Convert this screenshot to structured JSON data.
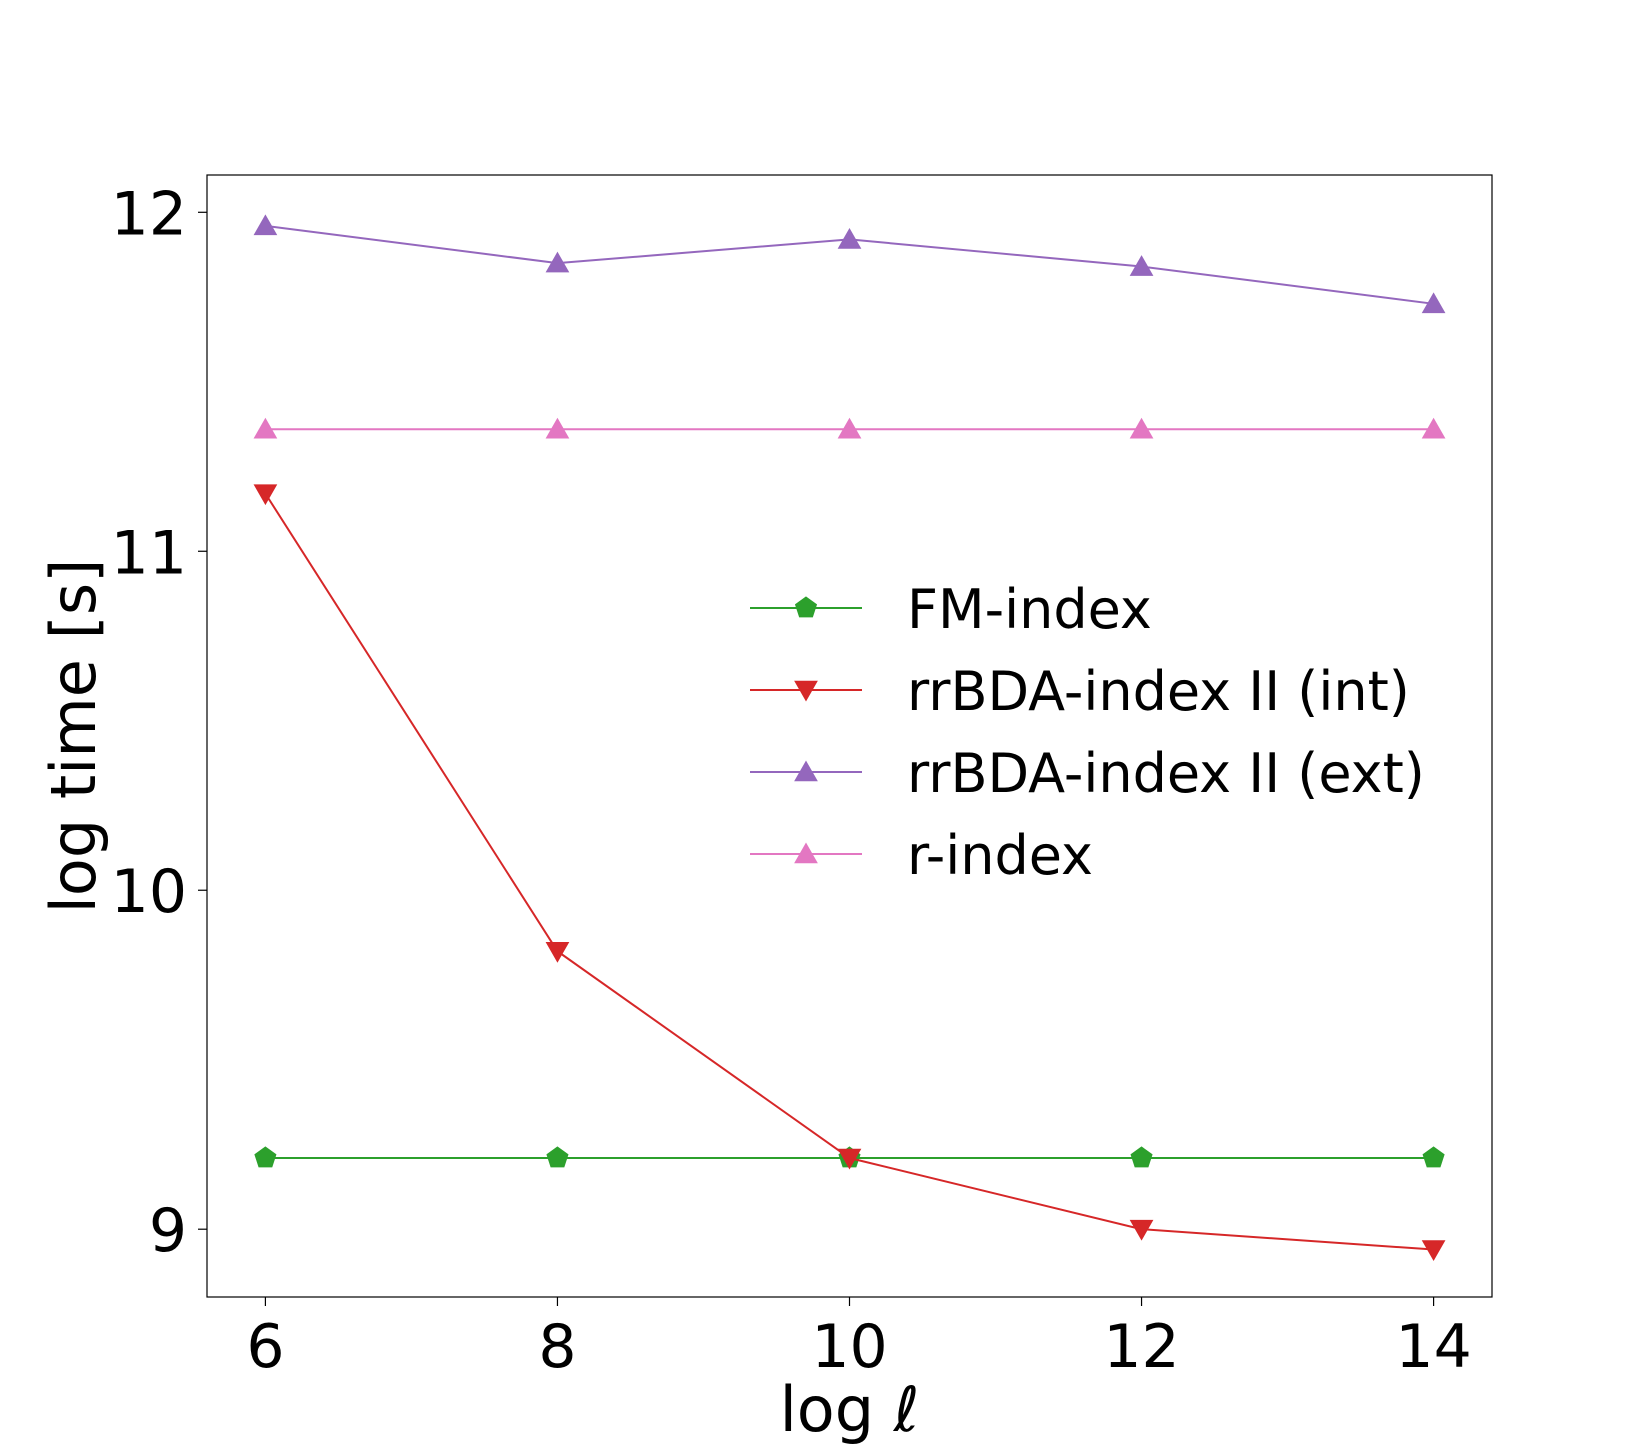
{
  "chart_data": {
    "type": "line",
    "title": "",
    "xlabel": "log ℓ",
    "ylabel": "log time [s]",
    "x": [
      6,
      8,
      10,
      12,
      14
    ],
    "xticks": [
      "6",
      "8",
      "10",
      "12",
      "14"
    ],
    "yticks": [
      "9",
      "10",
      "11",
      "12"
    ],
    "xlim": [
      5.6,
      14.4
    ],
    "ylim": [
      8.8,
      12.11
    ],
    "grid": false,
    "legend_position": "center-right",
    "series": [
      {
        "name": "FM-index",
        "values": [
          9.21,
          9.21,
          9.21,
          9.21,
          9.21
        ],
        "color": "#2ca02c",
        "marker": "pentagon"
      },
      {
        "name": "rrBDA-index II (int)",
        "values": [
          11.17,
          9.82,
          9.21,
          9.0,
          8.94
        ],
        "color": "#d62728",
        "marker": "triangle-down"
      },
      {
        "name": "rrBDA-index II (ext)",
        "values": [
          11.96,
          11.85,
          11.92,
          11.84,
          11.73
        ],
        "color": "#9467bd",
        "marker": "triangle-up"
      },
      {
        "name": "r-index",
        "values": [
          11.36,
          11.36,
          11.36,
          11.36,
          11.36
        ],
        "color": "#e377c2",
        "marker": "triangle-up"
      }
    ]
  }
}
